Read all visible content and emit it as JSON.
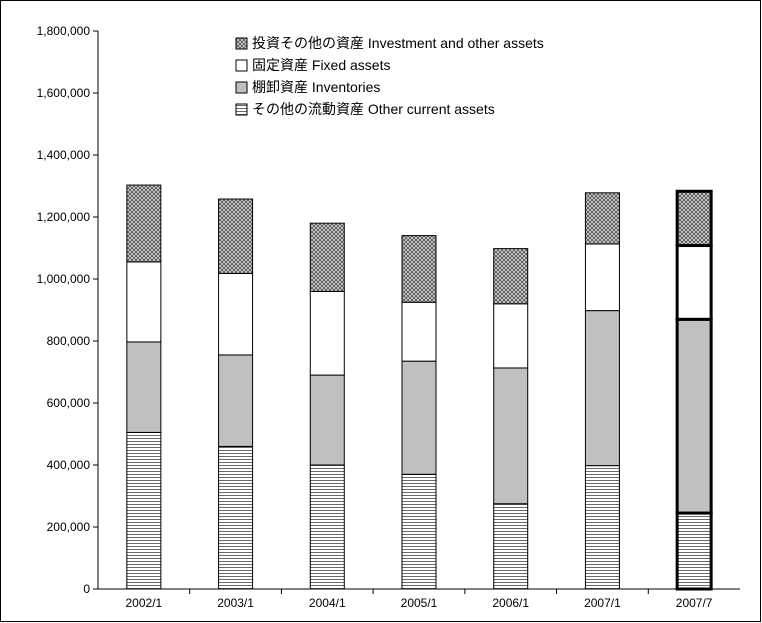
{
  "chart_data": {
    "type": "bar",
    "stacked": true,
    "categories": [
      "2002/1",
      "2003/1",
      "2004/1",
      "2005/1",
      "2006/1",
      "2007/1",
      "2007/7"
    ],
    "ylim": [
      0,
      1800000
    ],
    "yticks": [
      0,
      200000,
      400000,
      600000,
      800000,
      1000000,
      1200000,
      1400000,
      1600000,
      1800000
    ],
    "ytick_labels": [
      "0",
      "200,000",
      "400,000",
      "600,000",
      "800,000",
      "1,000,000",
      "1,200,000",
      "1,400,000",
      "1,600,000",
      "1,800,000"
    ],
    "grid": false,
    "legend_position": "top-right",
    "highlighted_category": "2007/7",
    "series": [
      {
        "name": "その他の流動資産 Other current assets",
        "pattern": "horizontal-lines",
        "values": [
          505000,
          460000,
          400000,
          370000,
          275000,
          398000,
          245000
        ]
      },
      {
        "name": "棚卸資産 Inventories",
        "pattern": "gray",
        "values": [
          292000,
          295000,
          290000,
          365000,
          438000,
          500000,
          625000
        ]
      },
      {
        "name": "固定資産 Fixed assets",
        "pattern": "white",
        "values": [
          258000,
          263000,
          270000,
          190000,
          207000,
          215000,
          238000
        ]
      },
      {
        "name": "投資その他の資産 Investment and other assets",
        "pattern": "crosshatch",
        "values": [
          248000,
          240000,
          220000,
          215000,
          178000,
          165000,
          175000
        ]
      }
    ],
    "legend_order": [
      3,
      2,
      1,
      0
    ],
    "colors": {
      "gray": "#c0c0c0",
      "white": "#ffffff",
      "line": "#000000",
      "pattern_line": "#6a6a6a"
    }
  }
}
